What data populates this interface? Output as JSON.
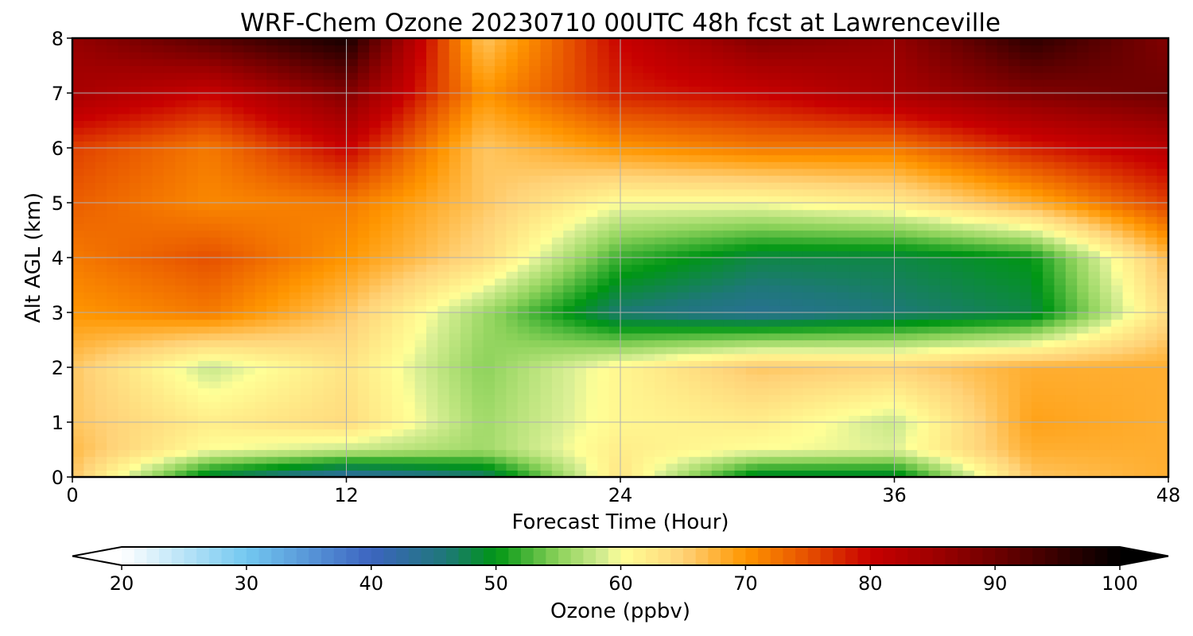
{
  "chart_data": {
    "type": "heatmap",
    "title": "WRF-Chem Ozone  20230710 00UTC 48h fcst at Lawrenceville",
    "xlabel": "Forecast Time (Hour)",
    "ylabel": "Alt AGL (km)",
    "xlim": [
      0,
      48
    ],
    "ylim": [
      0,
      8
    ],
    "x_ticks": [
      0,
      12,
      24,
      36,
      48
    ],
    "y_ticks": [
      0,
      1,
      2,
      3,
      4,
      5,
      6,
      7,
      8
    ],
    "grid": true,
    "colorbar": {
      "label": "Ozone  (ppbv)",
      "range": [
        20,
        100
      ],
      "ticks": [
        20,
        30,
        40,
        50,
        60,
        70,
        80,
        90,
        100
      ],
      "extend": "both",
      "colormap": [
        {
          "v": 20,
          "color": "#ffffff"
        },
        {
          "v": 30,
          "color": "#73c8f0"
        },
        {
          "v": 40,
          "color": "#3c64c0"
        },
        {
          "v": 46,
          "color": "#1e7878"
        },
        {
          "v": 50,
          "color": "#009614"
        },
        {
          "v": 55,
          "color": "#8cd25a"
        },
        {
          "v": 59,
          "color": "#dcf096"
        },
        {
          "v": 60,
          "color": "#ffff96"
        },
        {
          "v": 65,
          "color": "#ffd278"
        },
        {
          "v": 70,
          "color": "#ff9600"
        },
        {
          "v": 75,
          "color": "#e65000"
        },
        {
          "v": 80,
          "color": "#c80000"
        },
        {
          "v": 85,
          "color": "#a00000"
        },
        {
          "v": 90,
          "color": "#6e0000"
        },
        {
          "v": 100,
          "color": "#000000"
        }
      ]
    },
    "grid_x_hours": [
      0,
      6,
      12,
      18,
      24,
      30,
      36,
      42,
      48
    ],
    "grid_y_km": [
      0,
      0.5,
      1,
      2,
      3,
      4,
      5,
      6,
      7,
      8
    ],
    "values": [
      [
        66,
        48,
        42,
        46,
        63,
        48,
        48,
        66,
        68
      ],
      [
        67,
        60,
        58,
        56,
        62,
        60,
        59,
        68,
        68
      ],
      [
        66,
        62,
        64,
        56,
        61,
        62,
        58,
        69,
        68
      ],
      [
        66,
        58,
        63,
        55,
        61,
        66,
        65,
        68,
        68
      ],
      [
        70,
        72,
        66,
        56,
        46,
        44,
        46,
        48,
        64
      ],
      [
        72,
        75,
        70,
        64,
        52,
        48,
        48,
        50,
        67
      ],
      [
        74,
        71,
        72,
        66,
        60,
        60,
        62,
        68,
        76
      ],
      [
        76,
        72,
        80,
        66,
        70,
        72,
        72,
        78,
        82
      ],
      [
        84,
        80,
        88,
        70,
        78,
        80,
        84,
        88,
        90
      ],
      [
        86,
        92,
        98,
        66,
        80,
        88,
        86,
        96,
        88
      ]
    ]
  }
}
